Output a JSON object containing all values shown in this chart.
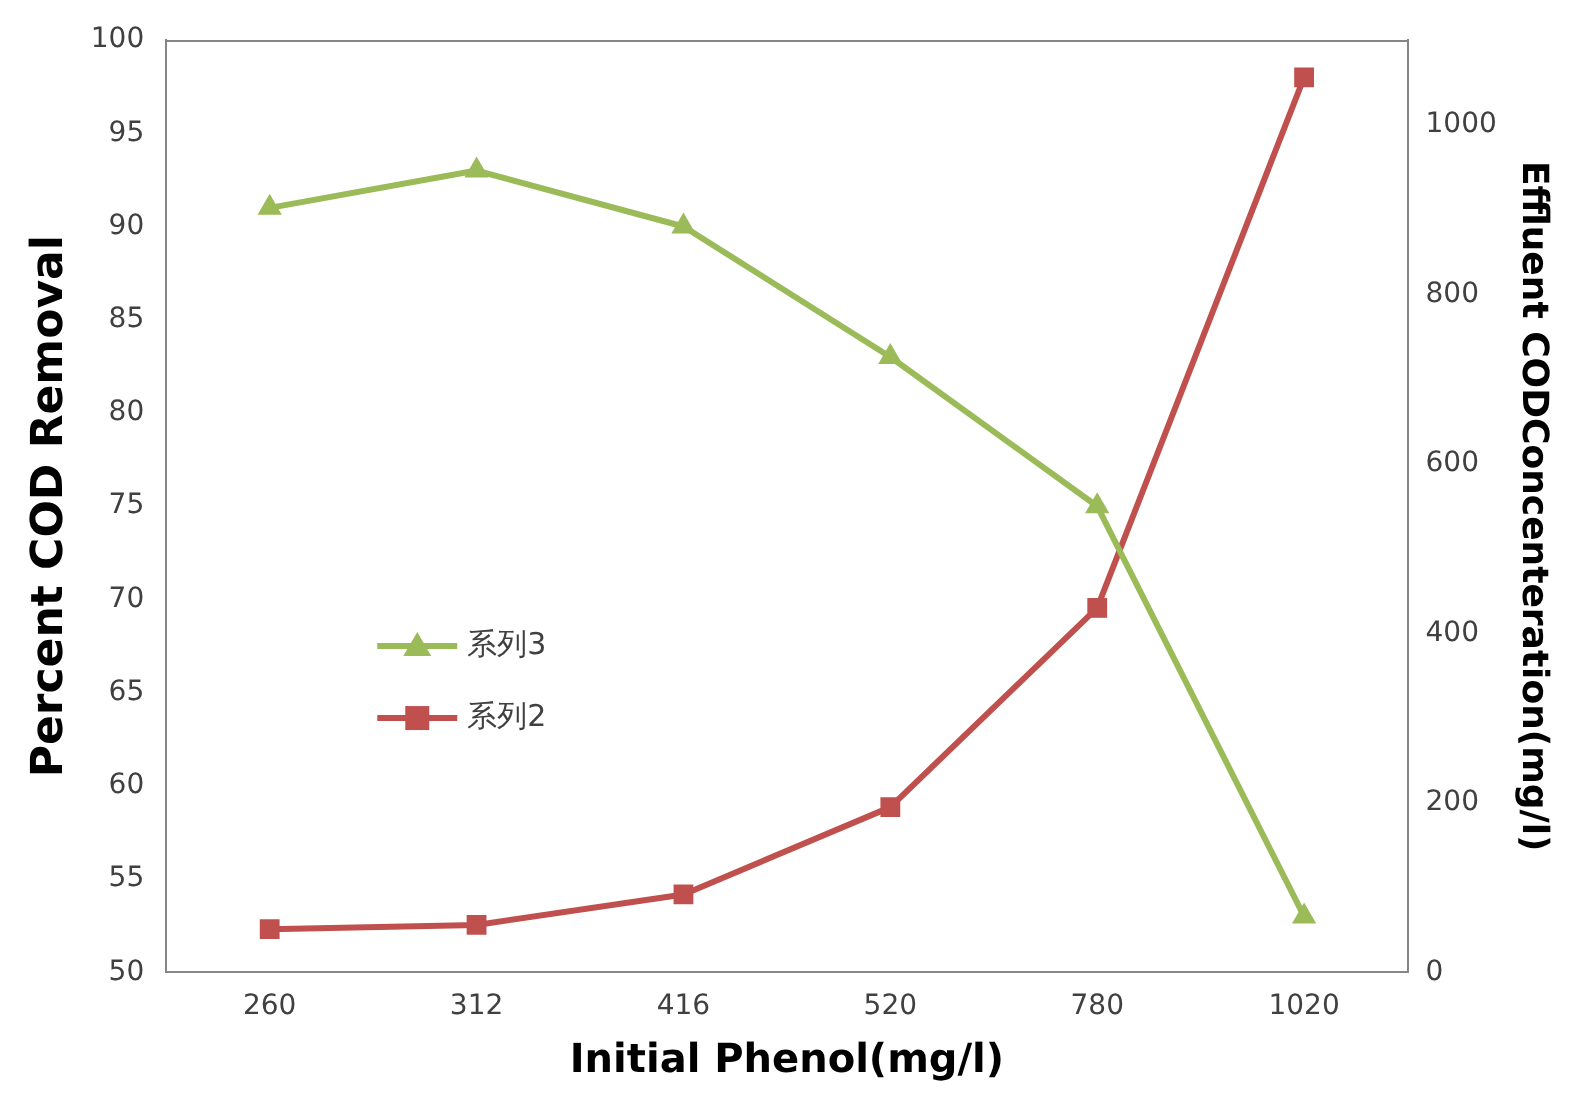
{
  "chart_data": {
    "type": "line",
    "xlabel": "Initial Phenol(mg/l)",
    "ylabel": "Percent COD Removal",
    "y2label": "Effluent CODConcenteration(mg/l)",
    "categories": [
      "260",
      "312",
      "416",
      "520",
      "780",
      "1020"
    ],
    "series": [
      {
        "name": "系列3",
        "color": "#9bbb59",
        "marker": "triangle",
        "values": [
          91,
          93,
          90,
          83,
          75,
          53
        ]
      },
      {
        "name": "系列2",
        "color": "#c0504d",
        "marker": "square",
        "axis": "y2",
        "values": [
          51,
          56,
          92,
          195,
          430,
          1056
        ]
      }
    ],
    "ylim": [
      50,
      100
    ],
    "yticks": [
      50,
      55,
      60,
      65,
      70,
      75,
      80,
      85,
      90,
      95,
      100
    ],
    "y2lim": [
      0,
      1100
    ],
    "y2ticks": [
      0,
      200,
      400,
      600,
      800,
      1000
    ],
    "grid": false,
    "legend": "left",
    "line_style": "solid"
  }
}
